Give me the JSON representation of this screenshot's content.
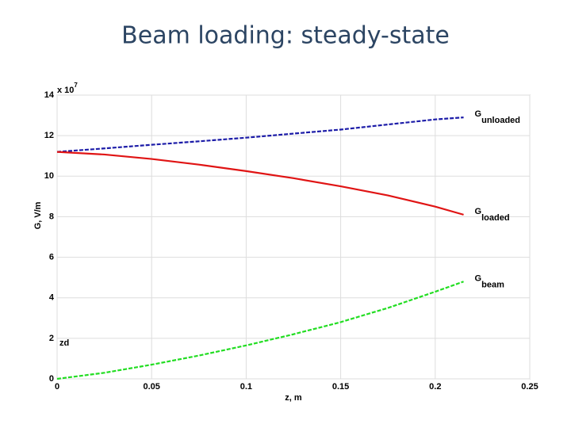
{
  "chart_data": {
    "type": "line",
    "title": "Beam loading: steady-state",
    "xlabel": "z, m",
    "ylabel": "G, V/m",
    "y_multiplier": {
      "base": "x 10",
      "exponent": "7"
    },
    "annotation": "zd",
    "x": [
      0,
      0.025,
      0.05,
      0.075,
      0.1,
      0.125,
      0.15,
      0.175,
      0.2,
      0.215
    ],
    "series": [
      {
        "name": "G",
        "name_subscript": "unloaded",
        "color": "#1c1ca8",
        "dashed": true,
        "values": [
          11.2,
          11.37,
          11.55,
          11.72,
          11.9,
          12.1,
          12.3,
          12.55,
          12.8,
          12.9
        ]
      },
      {
        "name": "G",
        "name_subscript": "loaded",
        "color": "#e01414",
        "dashed": false,
        "values": [
          11.2,
          11.07,
          10.85,
          10.57,
          10.25,
          9.9,
          9.5,
          9.05,
          8.5,
          8.1
        ]
      },
      {
        "name": "G",
        "name_subscript": "beam",
        "color": "#22dd22",
        "dashed": true,
        "values": [
          0,
          0.3,
          0.7,
          1.15,
          1.65,
          2.2,
          2.8,
          3.5,
          4.3,
          4.8
        ]
      }
    ],
    "xlim": [
      0,
      0.25
    ],
    "xticks": [
      0,
      0.05,
      0.1,
      0.15,
      0.2,
      0.25
    ],
    "ylim": [
      0,
      14
    ],
    "yticks": [
      0,
      2,
      4,
      6,
      8,
      10,
      12,
      14
    ],
    "grid": true
  }
}
